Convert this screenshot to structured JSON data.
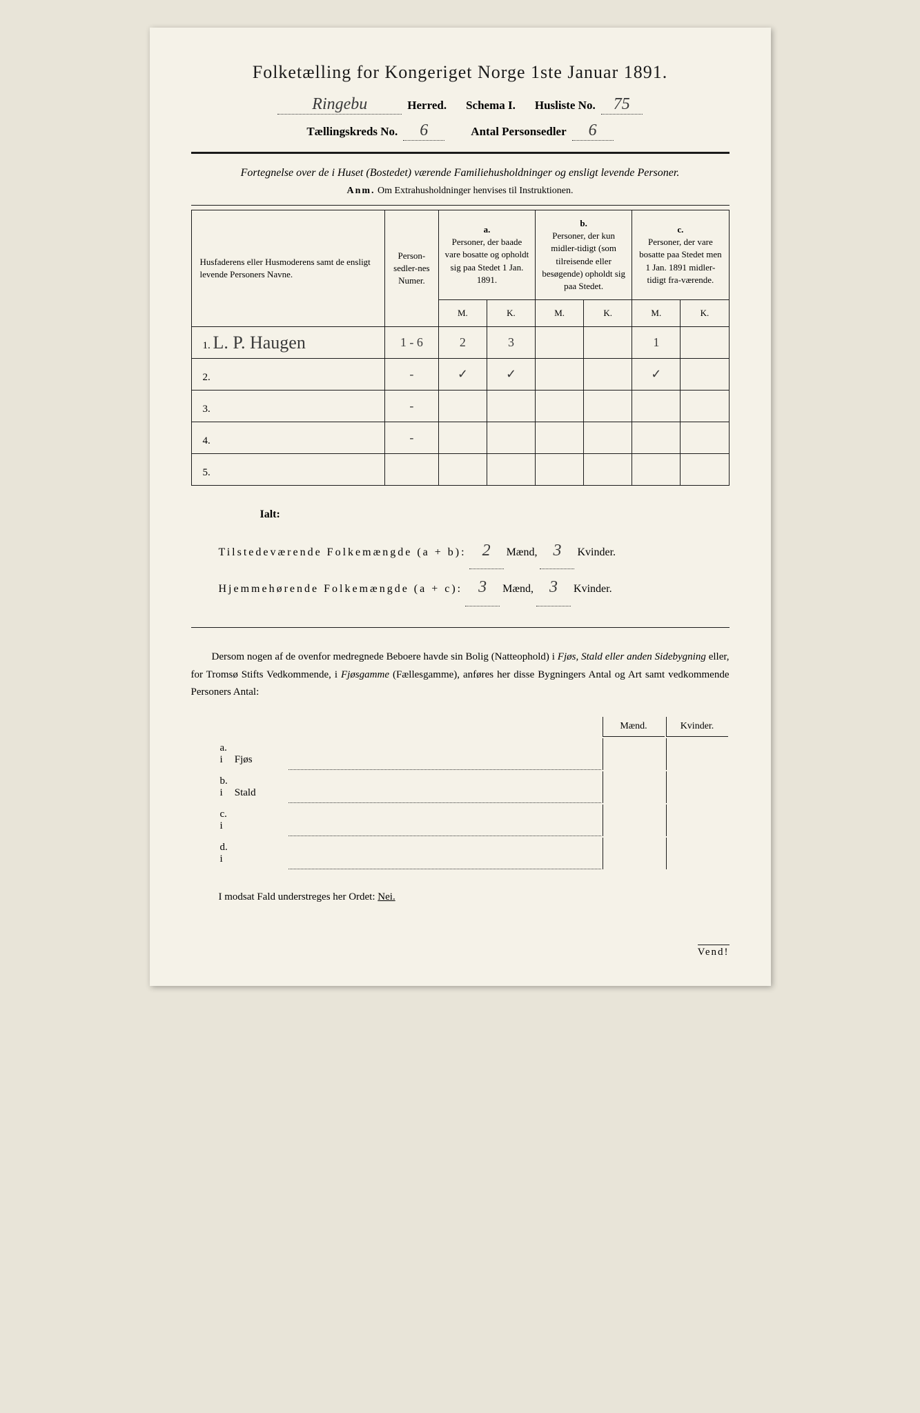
{
  "title": "Folketælling for Kongeriget Norge 1ste Januar 1891.",
  "header": {
    "herred_value": "Ringebu",
    "herred_label": "Herred.",
    "schema_label": "Schema I.",
    "husliste_label": "Husliste No.",
    "husliste_value": "75",
    "kreds_label": "Tællingskreds No.",
    "kreds_value": "6",
    "antal_label": "Antal Personsedler",
    "antal_value": "6"
  },
  "subtitle": "Fortegnelse over de i Huset (Bostedet) værende Familiehusholdninger og ensligt levende Personer.",
  "anm": {
    "prefix": "Anm.",
    "text": "Om Extrahusholdninger henvises til Instruktionen."
  },
  "table": {
    "head": {
      "name": "Husfaderens eller Husmoderens samt de ensligt levende Personers Navne.",
      "numer": "Person-sedler-nes Numer.",
      "a_label": "a.",
      "a_text": "Personer, der baade vare bosatte og opholdt sig paa Stedet 1 Jan. 1891.",
      "b_label": "b.",
      "b_text": "Personer, der kun midler-tidigt (som tilreisende eller besøgende) opholdt sig paa Stedet.",
      "c_label": "c.",
      "c_text": "Personer, der vare bosatte paa Stedet men 1 Jan. 1891 midler-tidigt fra-værende.",
      "m": "M.",
      "k": "K."
    },
    "rows": [
      {
        "num": "1.",
        "name": "L. P. Haugen",
        "sedler": "1 - 6",
        "a_m": "2",
        "a_k": "3",
        "b_m": "",
        "b_k": "",
        "c_m": "1",
        "c_k": ""
      },
      {
        "num": "2.",
        "name": "",
        "sedler": "-",
        "a_m": "✓",
        "a_k": "✓",
        "b_m": "",
        "b_k": "",
        "c_m": "✓",
        "c_k": ""
      },
      {
        "num": "3.",
        "name": "",
        "sedler": "-",
        "a_m": "",
        "a_k": "",
        "b_m": "",
        "b_k": "",
        "c_m": "",
        "c_k": ""
      },
      {
        "num": "4.",
        "name": "",
        "sedler": "-",
        "a_m": "",
        "a_k": "",
        "b_m": "",
        "b_k": "",
        "c_m": "",
        "c_k": ""
      },
      {
        "num": "5.",
        "name": "",
        "sedler": "",
        "a_m": "",
        "a_k": "",
        "b_m": "",
        "b_k": "",
        "c_m": "",
        "c_k": ""
      }
    ]
  },
  "totals": {
    "ialt": "Ialt:",
    "line1_label": "Tilstedeværende Folkemængde (a + b):",
    "line1_m": "2",
    "line1_k": "3",
    "line2_label": "Hjemmehørende Folkemængde (a + c):",
    "line2_m": "3",
    "line2_k": "3",
    "maend": "Mænd,",
    "kvinder": "Kvinder."
  },
  "paragraph": {
    "text1": "Dersom nogen af de ovenfor medregnede Beboere havde sin Bolig (Natteophold) i ",
    "italic1": "Fjøs, Stald eller anden Sidebygning",
    "text2": " eller, for Tromsø Stifts Vedkommende, i ",
    "italic2": "Fjøsgamme",
    "text3": " (Fællesgamme), anføres her disse Bygningers Antal og Art samt vedkommende Personers Antal:"
  },
  "subtable": {
    "maend": "Mænd.",
    "kvinder": "Kvinder.",
    "rows": [
      {
        "lbl": "a.  i",
        "type": "Fjøs"
      },
      {
        "lbl": "b.  i",
        "type": "Stald"
      },
      {
        "lbl": "c.  i",
        "type": ""
      },
      {
        "lbl": "d.  i",
        "type": ""
      }
    ]
  },
  "nei": {
    "text": "I modsat Fald understreges her Ordet: ",
    "word": "Nei."
  },
  "vend": "Vend!"
}
